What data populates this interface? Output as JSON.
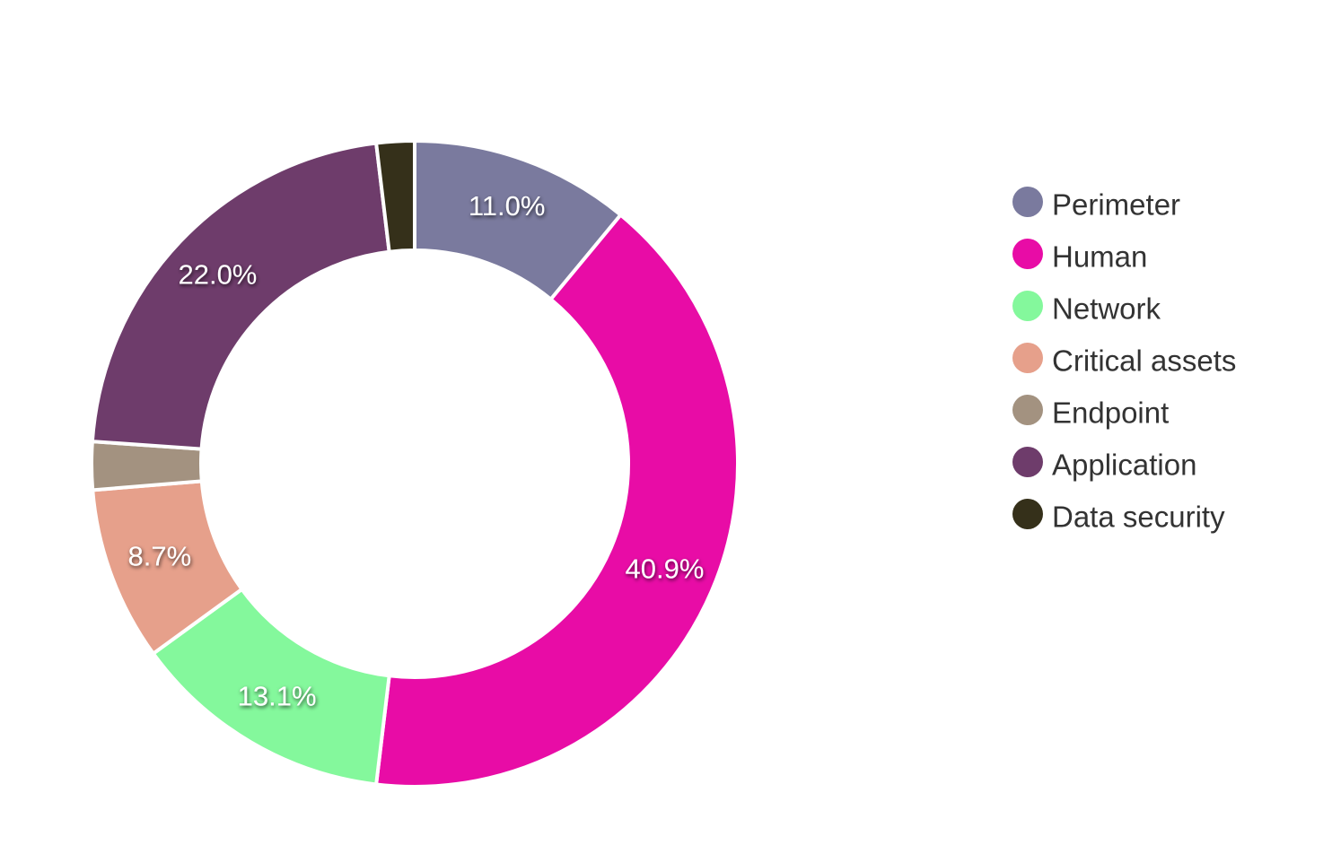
{
  "chart_data": {
    "type": "donut",
    "categories": [
      "Perimeter",
      "Human",
      "Network",
      "Critical assets",
      "Endpoint",
      "Application",
      "Data security"
    ],
    "values": [
      11.0,
      40.9,
      13.1,
      8.7,
      2.4,
      22.0,
      1.9
    ],
    "value_labels": [
      "11.0%",
      "40.9%",
      "13.1%",
      "8.7%",
      null,
      "22.0%",
      null
    ],
    "colors": [
      "#7a7a9e",
      "#e80ca6",
      "#84f89c",
      "#e6a08b",
      "#a39280",
      "#6e3c6b",
      "#35301a"
    ]
  }
}
